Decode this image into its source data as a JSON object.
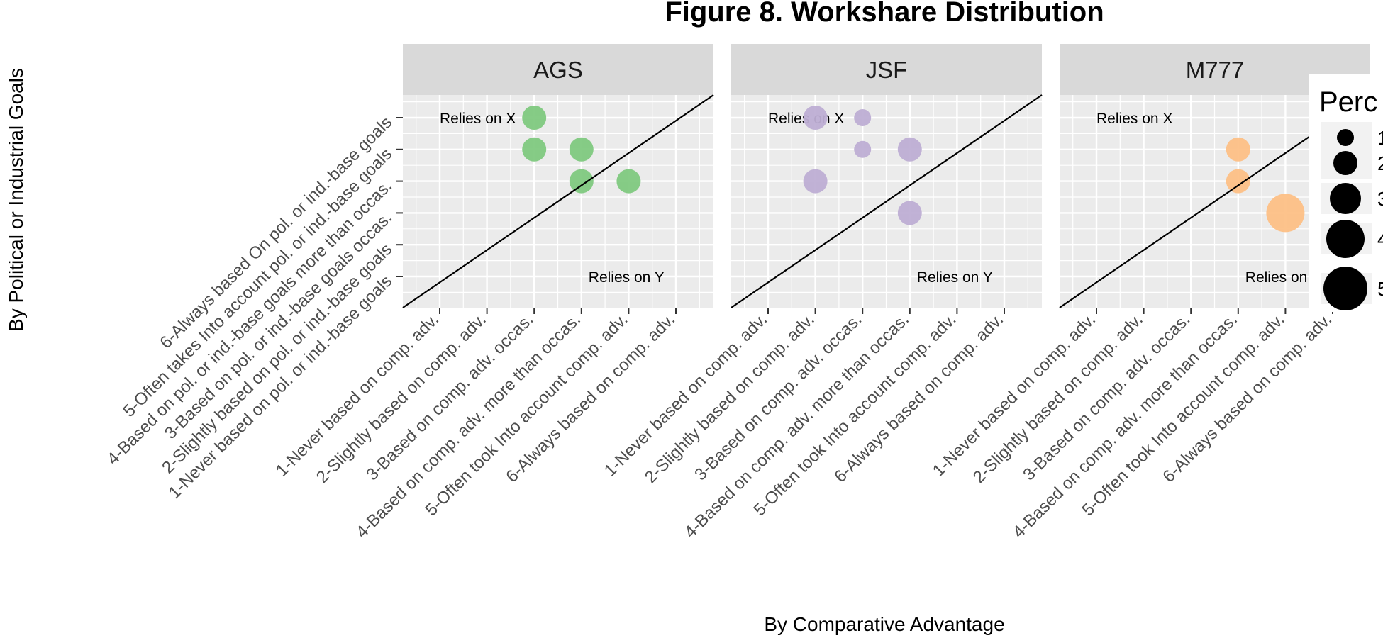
{
  "chart_data": {
    "type": "scatter",
    "title": "Figure 8. Workshare Distribution",
    "xlabel": "By Comparative Advantage",
    "ylabel": "By Political or Industrial Goals",
    "x_categories": [
      "1-Never based on comp. adv.",
      "2-Slightly based on comp. adv.",
      "3-Based on comp. adv. occas.",
      "4-Based on comp. adv. more than occas.",
      "5-Often took Into account comp. adv.",
      "6-Always based on comp. adv."
    ],
    "y_categories": [
      "1-Never based on pol. or ind.-base goals",
      "2-Slightly based on pol. or ind.-base goals",
      "3-Based on pol. or ind.-base goals occas.",
      "4-Based on pol. or ind.-base goals more than occas.",
      "5-Often takes Into account pol. or ind.-base goals",
      "6-Always based On pol. or ind.-base goals"
    ],
    "annotations": {
      "upper_left": "Relies on X",
      "lower_right": "Relies on Y"
    },
    "reference_line": "y = x",
    "grid": true,
    "size_legend": {
      "title": "Perc",
      "labels": [
        "1",
        "2",
        "3",
        "4",
        "5"
      ],
      "values": [
        1,
        2,
        3,
        4,
        5
      ],
      "placement": "right (partially cut off)"
    },
    "panels": [
      {
        "name": "AGS",
        "color": "#7fc97f",
        "points": [
          {
            "x": 3,
            "y": 6,
            "size": 2
          },
          {
            "x": 3,
            "y": 5,
            "size": 2
          },
          {
            "x": 4,
            "y": 5,
            "size": 2
          },
          {
            "x": 4,
            "y": 4,
            "size": 2
          },
          {
            "x": 5,
            "y": 4,
            "size": 2
          }
        ]
      },
      {
        "name": "JSF",
        "color": "#beaed4",
        "points": [
          {
            "x": 2,
            "y": 6,
            "size": 2
          },
          {
            "x": 3,
            "y": 6,
            "size": 1
          },
          {
            "x": 3,
            "y": 5,
            "size": 1
          },
          {
            "x": 4,
            "y": 5,
            "size": 2
          },
          {
            "x": 2,
            "y": 4,
            "size": 2
          },
          {
            "x": 4,
            "y": 3,
            "size": 2
          }
        ]
      },
      {
        "name": "M777",
        "color": "#fdc086",
        "points": [
          {
            "x": 4,
            "y": 5,
            "size": 2
          },
          {
            "x": 4,
            "y": 4,
            "size": 2
          },
          {
            "x": 5,
            "y": 3,
            "size": 4
          }
        ]
      }
    ]
  }
}
